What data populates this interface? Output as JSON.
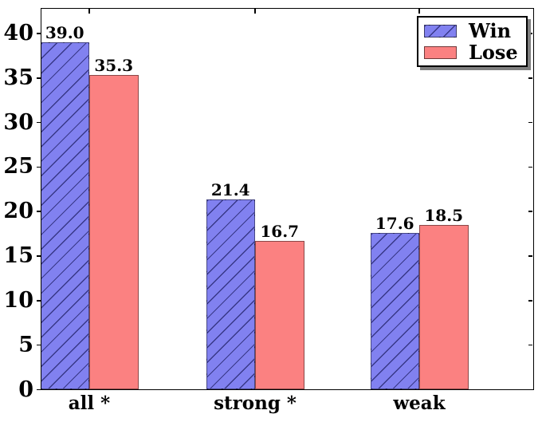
{
  "figure": {
    "background": "#ffffff",
    "axis_color": "#000000"
  },
  "chart_data": {
    "type": "bar",
    "title": "",
    "xlabel": "",
    "ylabel": "",
    "categories": [
      "all *",
      "strong *",
      "weak"
    ],
    "series": [
      {
        "name": "Win",
        "values": [
          39.0,
          21.4,
          17.6
        ],
        "color": "#8181f0",
        "hatch": "/"
      },
      {
        "name": "Lose",
        "values": [
          35.3,
          16.7,
          18.5
        ],
        "color": "#fb8181",
        "hatch": ""
      }
    ],
    "value_label_format": "one-decimal",
    "yticks": [
      0,
      5,
      10,
      15,
      20,
      25,
      30,
      35,
      40
    ],
    "ylim": [
      0,
      42.9
    ],
    "grid": false,
    "legend": {
      "position": "upper right",
      "shadow": true
    }
  }
}
